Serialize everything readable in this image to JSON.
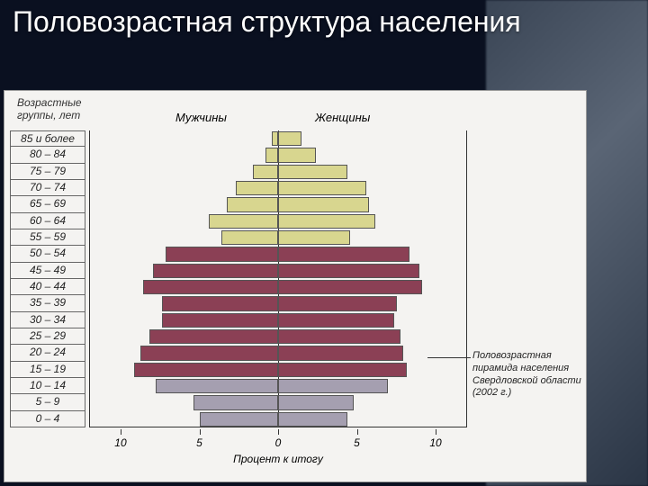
{
  "title": "Половозрастная структура населения",
  "chart": {
    "type": "population-pyramid",
    "yaxis_title": "Возрастные\nгруппы, лет",
    "column_male": "Мужчины",
    "column_female": "Женщины",
    "xaxis_title": "Процент к итогу",
    "xlim_each_side": 12,
    "xticks": [
      10,
      5,
      0,
      5,
      10
    ],
    "background_color": "#f4f3f1",
    "axis_color": "#333333",
    "label_fontsize": 12,
    "bands": [
      {
        "label": "85 и более",
        "m": 0.4,
        "f": 1.5,
        "color": "#d8d68f"
      },
      {
        "label": "80 – 84",
        "m": 0.8,
        "f": 2.4,
        "color": "#d8d68f"
      },
      {
        "label": "75 – 79",
        "m": 1.6,
        "f": 4.4,
        "color": "#d8d68f"
      },
      {
        "label": "70 – 74",
        "m": 2.7,
        "f": 5.6,
        "color": "#d8d68f"
      },
      {
        "label": "65 – 69",
        "m": 3.3,
        "f": 5.8,
        "color": "#d8d68f"
      },
      {
        "label": "60 – 64",
        "m": 4.4,
        "f": 6.2,
        "color": "#d8d68f"
      },
      {
        "label": "55 – 59",
        "m": 3.6,
        "f": 4.6,
        "color": "#d8d68f"
      },
      {
        "label": "50 – 54",
        "m": 7.2,
        "f": 8.4,
        "color": "#8b4055"
      },
      {
        "label": "45 – 49",
        "m": 8.0,
        "f": 9.0,
        "color": "#8b4055"
      },
      {
        "label": "40 – 44",
        "m": 8.6,
        "f": 9.2,
        "color": "#8b4055"
      },
      {
        "label": "35 – 39",
        "m": 7.4,
        "f": 7.6,
        "color": "#8b4055"
      },
      {
        "label": "30 – 34",
        "m": 7.4,
        "f": 7.4,
        "color": "#8b4055"
      },
      {
        "label": "25 – 29",
        "m": 8.2,
        "f": 7.8,
        "color": "#8b4055"
      },
      {
        "label": "20 – 24",
        "m": 8.8,
        "f": 8.0,
        "color": "#8b4055"
      },
      {
        "label": "15 – 19",
        "m": 9.2,
        "f": 8.2,
        "color": "#8b4055"
      },
      {
        "label": "10 – 14",
        "m": 7.8,
        "f": 7.0,
        "color": "#a59fb0"
      },
      {
        "label": "5 – 9",
        "m": 5.4,
        "f": 4.8,
        "color": "#a59fb0"
      },
      {
        "label": "0 – 4",
        "m": 5.0,
        "f": 4.4,
        "color": "#a59fb0"
      }
    ],
    "colors": {
      "old": "#d8d68f",
      "adult": "#8b4055",
      "young": "#a59fb0"
    }
  },
  "caption": "Половозрастная пирамида населения Свердловской области (2002 г.)"
}
